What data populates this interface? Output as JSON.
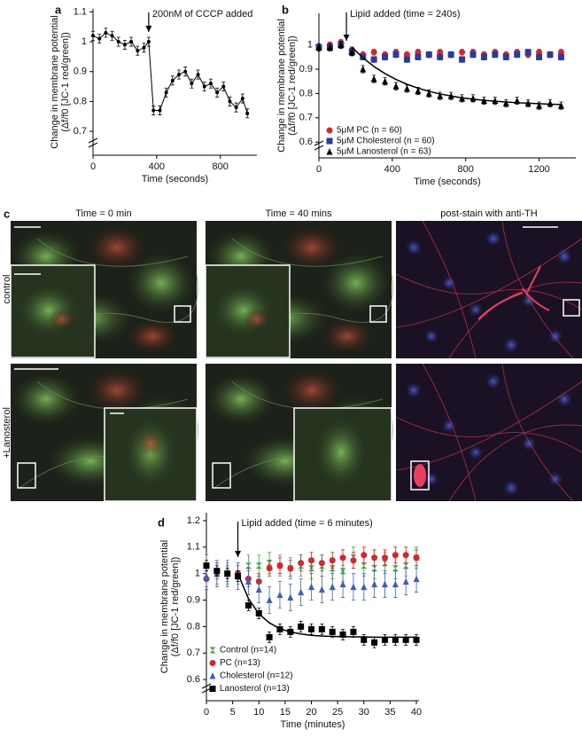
{
  "chart_data": [
    {
      "type": "line",
      "label": "a",
      "annotation": {
        "text": "200nM of CCCP added",
        "x": 350
      },
      "ylabel": [
        "Change in membrane potential",
        "(Δf/f0 [JC-1 red/green])"
      ],
      "xlabel": "Time (seconds)",
      "x": [
        0,
        40,
        80,
        120,
        160,
        200,
        240,
        280,
        320,
        350,
        380,
        420,
        460,
        500,
        540,
        580,
        620,
        660,
        700,
        740,
        780,
        820,
        860,
        900,
        940,
        970
      ],
      "values": [
        1.02,
        1.01,
        1.03,
        1.02,
        1.0,
        0.99,
        1.0,
        0.97,
        0.98,
        1.0,
        0.77,
        0.77,
        0.83,
        0.87,
        0.89,
        0.9,
        0.86,
        0.89,
        0.85,
        0.86,
        0.83,
        0.85,
        0.8,
        0.78,
        0.81,
        0.76
      ],
      "error": 0.015,
      "color": "#000000",
      "marker": "point",
      "line": true,
      "xlim": [
        0,
        1030
      ],
      "ylim": [
        0.62,
        1.11
      ],
      "xticks": [
        0,
        400,
        800
      ],
      "yticks": [
        0.7,
        0.8,
        0.9,
        1.0,
        1.1
      ]
    },
    {
      "type": "scatter",
      "label": "b",
      "annotation": {
        "text": "Lipid added (time = 240s)",
        "x": 150
      },
      "ylabel": [
        "Change in membrane potential",
        "(Δf/f0 [JC-1 red/green])"
      ],
      "xlabel": "Time (seconds)",
      "x": [
        0,
        60,
        120,
        180,
        240,
        300,
        360,
        420,
        480,
        540,
        600,
        660,
        720,
        780,
        840,
        900,
        960,
        1020,
        1080,
        1140,
        1200,
        1260,
        1320
      ],
      "series": [
        {
          "name": "5μM PC (n = 60)",
          "color": "#d9232e",
          "marker": "circle",
          "error": 0.012,
          "values": [
            0.99,
            1.0,
            1.01,
            0.98,
            0.96,
            0.97,
            0.96,
            0.97,
            0.96,
            0.97,
            0.96,
            0.97,
            0.96,
            0.97,
            0.97,
            0.96,
            0.97,
            0.96,
            0.97,
            0.96,
            0.97,
            0.96,
            0.97
          ]
        },
        {
          "name": "5μM Cholesterol (n = 60)",
          "color": "#2b3a9b",
          "marker": "square",
          "error": 0.012,
          "values": [
            0.99,
            0.99,
            1.0,
            0.97,
            0.95,
            0.94,
            0.95,
            0.96,
            0.94,
            0.95,
            0.96,
            0.95,
            0.96,
            0.94,
            0.96,
            0.95,
            0.96,
            0.95,
            0.96,
            0.97,
            0.95,
            0.96,
            0.95
          ]
        },
        {
          "name": "5μM Lanosterol (n = 63)",
          "color": "#000000",
          "marker": "triangle",
          "error": 0.015,
          "values": [
            0.99,
            0.99,
            1.0,
            0.97,
            0.9,
            0.86,
            0.85,
            0.83,
            0.82,
            0.81,
            0.8,
            0.79,
            0.79,
            0.78,
            0.78,
            0.77,
            0.77,
            0.76,
            0.77,
            0.76,
            0.75,
            0.76,
            0.75
          ]
        }
      ],
      "fit": [
        null,
        null,
        null,
        0.99,
        0.947,
        0.911,
        0.882,
        0.858,
        0.838,
        0.822,
        0.809,
        0.798,
        0.79,
        0.782,
        0.777,
        0.772,
        0.768,
        0.765,
        0.762,
        0.76,
        0.758,
        0.756,
        0.755
      ],
      "xlim": [
        0,
        1400
      ],
      "ylim": [
        0.535,
        1.13
      ],
      "xticks": [
        0,
        400,
        800,
        1200
      ],
      "yticks": [
        0.6,
        0.7,
        0.8,
        0.9,
        1.0
      ]
    },
    {
      "type": "scatter",
      "label": "d",
      "annotation": {
        "text": "Lipid added (time = 6 minutes)",
        "x": 6
      },
      "ylabel": [
        "Change in membrane potential",
        "(Δf/f0 [JC-1 red/green])"
      ],
      "xlabel": "Time (minutes)",
      "x": [
        0,
        2,
        4,
        6,
        8,
        10,
        12,
        14,
        16,
        18,
        20,
        22,
        24,
        26,
        28,
        30,
        32,
        34,
        36,
        38,
        40
      ],
      "series": [
        {
          "name": "Control (n=14)",
          "color": "#4aa548",
          "marker": "hourglass",
          "error": 0.04,
          "values": [
            1.03,
            1.0,
            1.0,
            1.0,
            1.03,
            1.03,
            1.04,
            1.03,
            1.02,
            1.03,
            1.02,
            1.03,
            1.02,
            1.01,
            1.06,
            1.03,
            1.02,
            1.04,
            1.02,
            1.03,
            1.06
          ]
        },
        {
          "name": "PC (n=13)",
          "color": "#d9232e",
          "marker": "circle",
          "error": 0.03,
          "values": [
            0.98,
            1.01,
            1.0,
            1.0,
            0.98,
            0.97,
            1.02,
            1.03,
            1.02,
            1.04,
            1.05,
            1.04,
            1.05,
            1.06,
            1.05,
            1.07,
            1.06,
            1.06,
            1.07,
            1.07,
            1.06
          ]
        },
        {
          "name": "Cholesterol (n=12)",
          "color": "#3f5fc0",
          "marker": "triangle",
          "error": 0.05,
          "values": [
            0.99,
            1.0,
            1.0,
            0.99,
            0.97,
            0.94,
            0.9,
            0.92,
            0.91,
            0.93,
            0.95,
            0.94,
            0.95,
            0.96,
            0.95,
            0.95,
            0.96,
            0.96,
            0.96,
            0.97,
            0.98
          ]
        },
        {
          "name": "Lanosterol (n=13)",
          "color": "#000000",
          "marker": "square",
          "error": 0.02,
          "values": [
            1.03,
            1.01,
            1.0,
            0.99,
            0.88,
            0.85,
            0.76,
            0.79,
            0.78,
            0.8,
            0.79,
            0.79,
            0.78,
            0.77,
            0.78,
            0.75,
            0.74,
            0.75,
            0.75,
            0.75,
            0.75
          ]
        }
      ],
      "fit": [
        null,
        null,
        null,
        1.0,
        0.906,
        0.848,
        0.814,
        0.792,
        0.78,
        0.772,
        0.767,
        0.764,
        0.763,
        0.762,
        0.761,
        0.761,
        0.76,
        0.76,
        0.76,
        0.76,
        0.76
      ],
      "xlim": [
        0,
        40.5
      ],
      "ylim": [
        0.52,
        1.23
      ],
      "xticks": [
        0,
        5,
        10,
        15,
        20,
        25,
        30,
        35,
        40
      ],
      "yticks": [
        0.6,
        0.7,
        0.8,
        0.9,
        1.0,
        1.1,
        1.2
      ]
    }
  ],
  "panel_c": {
    "label": "c",
    "columns": [
      "Time = 0 min",
      "Time = 40 mins",
      "post-stain with anti-TH"
    ],
    "rows": [
      "control",
      "+Lanosterol"
    ]
  }
}
